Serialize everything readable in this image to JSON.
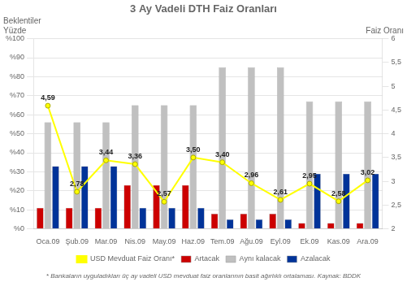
{
  "chart_data": {
    "type": "bar",
    "title": "3 Ay Vadeli DTH Faiz Oranları",
    "categories": [
      "Oca.09",
      "Şub.09",
      "Mar.09",
      "Nis.09",
      "May.09",
      "Haz.09",
      "Tem.09",
      "Ağu.09",
      "Eyl.09",
      "Ek.09",
      "Kas.09",
      "Ara.09"
    ],
    "series": [
      {
        "name": "Artacak",
        "color": "#cc0000",
        "values": [
          11,
          11,
          11,
          23,
          23,
          23,
          8,
          8,
          8,
          3,
          3,
          3
        ]
      },
      {
        "name": "Aynı kalacak",
        "color": "#c0c0c0",
        "values": [
          56,
          56,
          56,
          65,
          65,
          65,
          85,
          85,
          85,
          67,
          67,
          67
        ]
      },
      {
        "name": "Azalacak",
        "color": "#003399",
        "values": [
          33,
          33,
          33,
          11,
          11,
          11,
          5,
          5,
          5,
          29,
          29,
          29
        ]
      },
      {
        "name": "USD Mevduat Faiz Oranı*",
        "type": "line",
        "axis": "y2",
        "color": "#ffff00",
        "marker": "circle",
        "data_labels": true,
        "values": [
          4.59,
          2.78,
          3.44,
          3.36,
          2.57,
          3.5,
          3.4,
          2.96,
          2.61,
          2.95,
          2.58,
          3.02
        ],
        "value_labels": [
          "4,59",
          "2,78",
          "3,44",
          "3,36",
          "2,57",
          "3,50",
          "3,40",
          "2,96",
          "2,61",
          "2,95",
          "2,58",
          "3,02"
        ]
      }
    ],
    "ylabel": "Yüzde",
    "y2label": "Faiz Oranı",
    "annotations": [
      "Beklentiler"
    ],
    "footnote": "* Bankaların uyguladıkları üç ay vadeli USD mevduat faiz oranlarının basit ağırlıklı ortalaması. Kaynak: BDDK",
    "ylim": [
      0,
      100
    ],
    "yticks": [
      {
        "value": 0,
        "label": "%0"
      },
      {
        "value": 10,
        "label": "%10"
      },
      {
        "value": 20,
        "label": "%20"
      },
      {
        "value": 30,
        "label": "%30"
      },
      {
        "value": 40,
        "label": "%40"
      },
      {
        "value": 50,
        "label": "%50"
      },
      {
        "value": 60,
        "label": "%60"
      },
      {
        "value": 70,
        "label": "%70"
      },
      {
        "value": 80,
        "label": "%80"
      },
      {
        "value": 90,
        "label": "%90"
      },
      {
        "value": 100,
        "label": "%100"
      }
    ],
    "y2lim": [
      2,
      6
    ],
    "y2ticks": [
      2,
      {
        "value": 2.5,
        "label": "2,5"
      },
      3,
      {
        "value": 3.5,
        "label": "3,5"
      },
      4,
      {
        "value": 4.5,
        "label": "4,5"
      },
      5,
      {
        "value": 5.5,
        "label": "5,5"
      },
      6
    ],
    "grid": true,
    "legend": "bottom"
  }
}
